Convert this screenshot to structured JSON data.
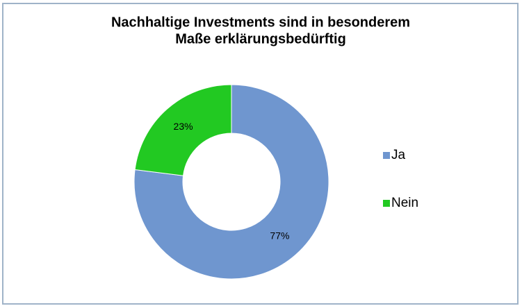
{
  "chart_data": {
    "type": "donut",
    "title": [
      "Nachhaltige Investments sind in besonderem",
      "Maße erklärungsbedürftig"
    ],
    "categories": [
      "Ja",
      "Nein"
    ],
    "values": [
      77,
      23
    ],
    "value_labels": [
      "77%",
      "23%"
    ],
    "colors": [
      "#6f96cf",
      "#22c922"
    ],
    "legend": "right"
  }
}
